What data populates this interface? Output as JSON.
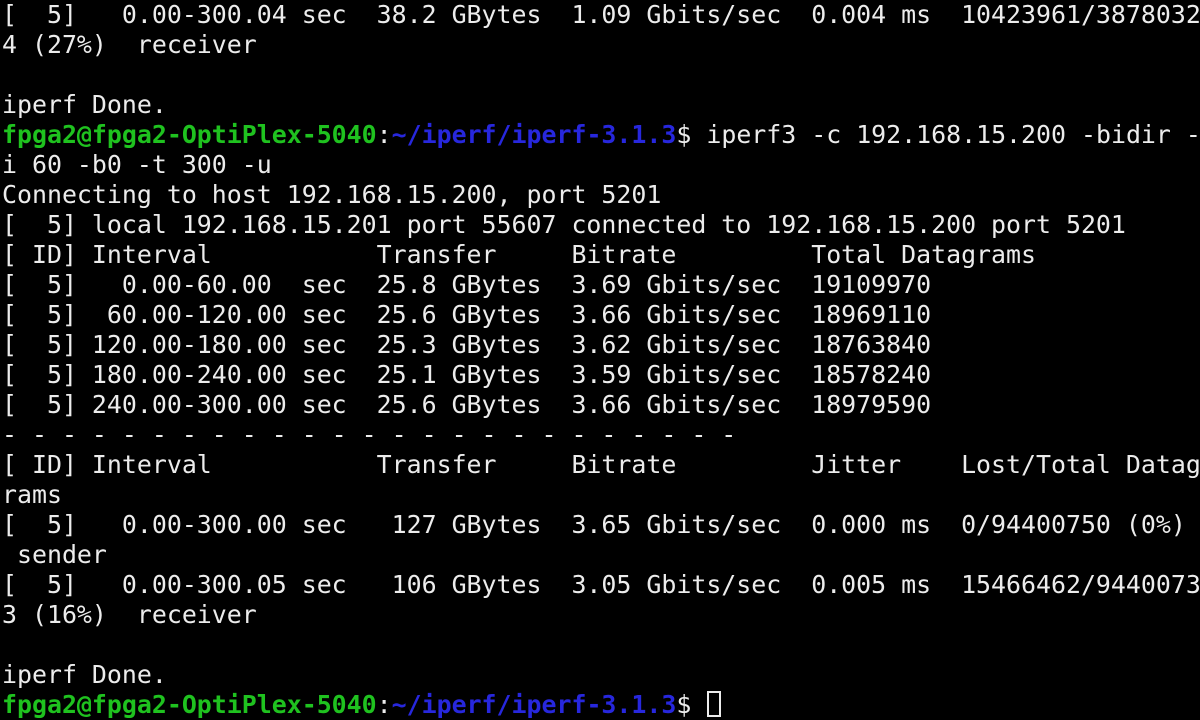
{
  "colors": {
    "background": "#000000",
    "foreground": "#ececec",
    "user_host_green": "#1fc21f",
    "path_blue": "#2727dd"
  },
  "terminal": {
    "columns": 80,
    "rows": 24,
    "cursor_style": "hollow-block",
    "lines": [
      {
        "segments": [
          {
            "text": "[  5]   0.00-300.04 sec  38.2 GBytes  1.09 Gbits/sec  0.004 ms  10423961/3878032",
            "color": "fg",
            "name": "prev-run-receiver-summary"
          }
        ]
      },
      {
        "segments": [
          {
            "text": "4 (27%)  receiver",
            "color": "fg",
            "name": "prev-run-receiver-summary-wrap"
          }
        ]
      },
      {
        "segments": [
          {
            "text": "",
            "color": "fg",
            "name": "blank"
          }
        ]
      },
      {
        "segments": [
          {
            "text": "iperf Done.",
            "color": "fg",
            "name": "iperf-done-message"
          }
        ]
      },
      {
        "segments": [
          {
            "text": "fpga2@fpga2-OptiPlex-5040",
            "color": "green",
            "name": "prompt-user-host"
          },
          {
            "text": ":",
            "color": "fg",
            "name": "prompt-separator"
          },
          {
            "text": "~/iperf/iperf-3.1.3",
            "color": "blue",
            "name": "prompt-path"
          },
          {
            "text": "$ iperf3 -c 192.168.15.200 -bidir -",
            "color": "fg",
            "name": "prompt-command"
          }
        ]
      },
      {
        "segments": [
          {
            "text": "i 60 -b0 -t 300 -u",
            "color": "fg",
            "name": "prompt-command-wrap"
          }
        ]
      },
      {
        "segments": [
          {
            "text": "Connecting to host 192.168.15.200, port 5201",
            "color": "fg",
            "name": "connecting-message"
          }
        ]
      },
      {
        "segments": [
          {
            "text": "[  5] local 192.168.15.201 port 55607 connected to 192.168.15.200 port 5201",
            "color": "fg",
            "name": "connection-info"
          }
        ]
      },
      {
        "segments": [
          {
            "text": "[ ID] Interval           Transfer     Bitrate         Total Datagrams",
            "color": "fg",
            "name": "interval-table-header"
          }
        ]
      },
      {
        "segments": [
          {
            "text": "[  5]   0.00-60.00  sec  25.8 GBytes  3.69 Gbits/sec  19109970",
            "color": "fg",
            "name": "interval-row"
          }
        ]
      },
      {
        "segments": [
          {
            "text": "[  5]  60.00-120.00 sec  25.6 GBytes  3.66 Gbits/sec  18969110",
            "color": "fg",
            "name": "interval-row"
          }
        ]
      },
      {
        "segments": [
          {
            "text": "[  5] 120.00-180.00 sec  25.3 GBytes  3.62 Gbits/sec  18763840",
            "color": "fg",
            "name": "interval-row"
          }
        ]
      },
      {
        "segments": [
          {
            "text": "[  5] 180.00-240.00 sec  25.1 GBytes  3.59 Gbits/sec  18578240",
            "color": "fg",
            "name": "interval-row"
          }
        ]
      },
      {
        "segments": [
          {
            "text": "[  5] 240.00-300.00 sec  25.6 GBytes  3.66 Gbits/sec  18979590",
            "color": "fg",
            "name": "interval-row"
          }
        ]
      },
      {
        "segments": [
          {
            "text": "- - - - - - - - - - - - - - - - - - - - - - - - -",
            "color": "fg",
            "name": "summary-divider"
          }
        ]
      },
      {
        "segments": [
          {
            "text": "[ ID] Interval           Transfer     Bitrate         Jitter    Lost/Total Datag",
            "color": "fg",
            "name": "summary-table-header"
          }
        ]
      },
      {
        "segments": [
          {
            "text": "rams",
            "color": "fg",
            "name": "summary-table-header-wrap"
          }
        ]
      },
      {
        "segments": [
          {
            "text": "[  5]   0.00-300.00 sec   127 GBytes  3.65 Gbits/sec  0.000 ms  0/94400750 (0%)",
            "color": "fg",
            "name": "sender-summary-row"
          }
        ]
      },
      {
        "segments": [
          {
            "text": " sender",
            "color": "fg",
            "name": "sender-summary-row-wrap"
          }
        ]
      },
      {
        "segments": [
          {
            "text": "[  5]   0.00-300.05 sec   106 GBytes  3.05 Gbits/sec  0.005 ms  15466462/9440073",
            "color": "fg",
            "name": "receiver-summary-row"
          }
        ]
      },
      {
        "segments": [
          {
            "text": "3 (16%)  receiver",
            "color": "fg",
            "name": "receiver-summary-row-wrap"
          }
        ]
      },
      {
        "segments": [
          {
            "text": "",
            "color": "fg",
            "name": "blank"
          }
        ]
      },
      {
        "segments": [
          {
            "text": "iperf Done.",
            "color": "fg",
            "name": "iperf-done-message"
          }
        ]
      },
      {
        "segments": [
          {
            "text": "fpga2@fpga2-OptiPlex-5040",
            "color": "green",
            "name": "prompt-user-host"
          },
          {
            "text": ":",
            "color": "fg",
            "name": "prompt-separator"
          },
          {
            "text": "~/iperf/iperf-3.1.3",
            "color": "blue",
            "name": "prompt-path"
          },
          {
            "text": "$ ",
            "color": "fg",
            "name": "prompt-dollar"
          }
        ],
        "cursor": true
      }
    ]
  }
}
